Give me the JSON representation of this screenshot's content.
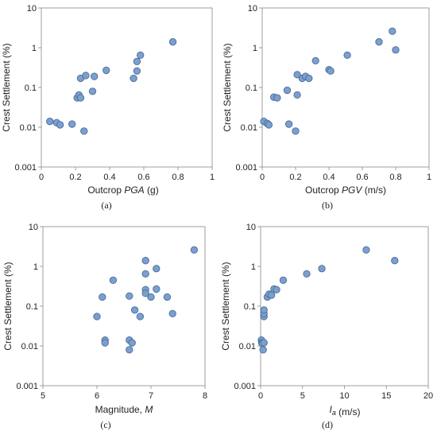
{
  "chart_data": [
    {
      "type": "scatter",
      "panel_label": "(a)",
      "ylabel": "Crest Settlement (%)",
      "xlabel_parts": [
        {
          "t": "Outcrop ",
          "i": false
        },
        {
          "t": "PGA",
          "i": true
        },
        {
          "t": " (g)",
          "i": false
        }
      ],
      "xlim": [
        0,
        1
      ],
      "ylim": [
        0.001,
        10
      ],
      "yscale": "log",
      "x_ticks": [
        "0",
        "0.2",
        "0.4",
        "0.6",
        "0.8",
        "1"
      ],
      "y_ticks": [
        "0.001",
        "0.01",
        "0.1",
        "1",
        "10"
      ],
      "grid": false,
      "marker_color": "#7b9fcf",
      "marker_edge": "#4a6c99",
      "points": [
        {
          "x": 0.05,
          "y": 0.014
        },
        {
          "x": 0.09,
          "y": 0.013
        },
        {
          "x": 0.11,
          "y": 0.0115
        },
        {
          "x": 0.18,
          "y": 0.012
        },
        {
          "x": 0.21,
          "y": 0.055
        },
        {
          "x": 0.22,
          "y": 0.065
        },
        {
          "x": 0.23,
          "y": 0.055
        },
        {
          "x": 0.23,
          "y": 0.17
        },
        {
          "x": 0.25,
          "y": 0.008
        },
        {
          "x": 0.26,
          "y": 0.2
        },
        {
          "x": 0.3,
          "y": 0.08
        },
        {
          "x": 0.31,
          "y": 0.19
        },
        {
          "x": 0.38,
          "y": 0.27
        },
        {
          "x": 0.54,
          "y": 0.17
        },
        {
          "x": 0.56,
          "y": 0.26
        },
        {
          "x": 0.56,
          "y": 0.45
        },
        {
          "x": 0.58,
          "y": 0.65
        },
        {
          "x": 0.77,
          "y": 1.4
        }
      ]
    },
    {
      "type": "scatter",
      "panel_label": "(b)",
      "ylabel": "Crest Settlement (%)",
      "xlabel_parts": [
        {
          "t": "Outcrop ",
          "i": false
        },
        {
          "t": "PGV",
          "i": true
        },
        {
          "t": " (m/s)",
          "i": false
        }
      ],
      "xlim": [
        0,
        1
      ],
      "ylim": [
        0.001,
        10
      ],
      "yscale": "log",
      "x_ticks": [
        "0",
        "0.2",
        "0.4",
        "0.6",
        "0.8",
        "1"
      ],
      "y_ticks": [
        "0.001",
        "0.01",
        "0.1",
        "1",
        "10"
      ],
      "grid": false,
      "marker_color": "#7b9fcf",
      "marker_edge": "#4a6c99",
      "points": [
        {
          "x": 0.01,
          "y": 0.014
        },
        {
          "x": 0.03,
          "y": 0.0125
        },
        {
          "x": 0.04,
          "y": 0.0115
        },
        {
          "x": 0.07,
          "y": 0.057
        },
        {
          "x": 0.09,
          "y": 0.055
        },
        {
          "x": 0.15,
          "y": 0.085
        },
        {
          "x": 0.16,
          "y": 0.012
        },
        {
          "x": 0.2,
          "y": 0.008
        },
        {
          "x": 0.21,
          "y": 0.065
        },
        {
          "x": 0.21,
          "y": 0.21
        },
        {
          "x": 0.24,
          "y": 0.17
        },
        {
          "x": 0.26,
          "y": 0.19
        },
        {
          "x": 0.28,
          "y": 0.17
        },
        {
          "x": 0.32,
          "y": 0.47
        },
        {
          "x": 0.4,
          "y": 0.28
        },
        {
          "x": 0.41,
          "y": 0.26
        },
        {
          "x": 0.51,
          "y": 0.65
        },
        {
          "x": 0.7,
          "y": 1.4
        },
        {
          "x": 0.78,
          "y": 2.6
        },
        {
          "x": 0.8,
          "y": 0.88
        }
      ]
    },
    {
      "type": "scatter",
      "panel_label": "(c)",
      "ylabel": "Crest Settlement (%)",
      "xlabel_parts": [
        {
          "t": "Magnitude, ",
          "i": false
        },
        {
          "t": "M",
          "i": true
        }
      ],
      "xlim": [
        5,
        8
      ],
      "ylim": [
        0.001,
        10
      ],
      "yscale": "log",
      "x_ticks": [
        "5",
        "6",
        "7",
        "8"
      ],
      "y_ticks": [
        "0.001",
        "0.01",
        "0.1",
        "1",
        "10"
      ],
      "grid": false,
      "marker_color": "#7b9fcf",
      "marker_edge": "#4a6c99",
      "points": [
        {
          "x": 6.0,
          "y": 0.055
        },
        {
          "x": 6.1,
          "y": 0.17
        },
        {
          "x": 6.15,
          "y": 0.014
        },
        {
          "x": 6.15,
          "y": 0.012
        },
        {
          "x": 6.3,
          "y": 0.45
        },
        {
          "x": 6.6,
          "y": 0.18
        },
        {
          "x": 6.6,
          "y": 0.014
        },
        {
          "x": 6.6,
          "y": 0.008
        },
        {
          "x": 6.65,
          "y": 0.012
        },
        {
          "x": 6.7,
          "y": 0.08
        },
        {
          "x": 6.8,
          "y": 0.055
        },
        {
          "x": 6.9,
          "y": 1.4
        },
        {
          "x": 6.9,
          "y": 0.65
        },
        {
          "x": 6.9,
          "y": 0.26
        },
        {
          "x": 6.9,
          "y": 0.21
        },
        {
          "x": 7.0,
          "y": 0.17
        },
        {
          "x": 7.1,
          "y": 0.88
        },
        {
          "x": 7.1,
          "y": 0.27
        },
        {
          "x": 7.3,
          "y": 0.17
        },
        {
          "x": 7.4,
          "y": 0.065
        },
        {
          "x": 7.8,
          "y": 2.6
        }
      ]
    },
    {
      "type": "scatter",
      "panel_label": "(d)",
      "ylabel": "Crest Settlement (%)",
      "xlabel_parts": [
        {
          "t": "I",
          "i": true
        },
        {
          "t": "a",
          "i": true,
          "sub": true
        },
        {
          "t": " (m/s)",
          "i": false
        }
      ],
      "xlim": [
        0,
        20
      ],
      "ylim": [
        0.001,
        10
      ],
      "yscale": "log",
      "x_ticks": [
        "0",
        "5",
        "10",
        "15",
        "20"
      ],
      "y_ticks": [
        "0.001",
        "0.01",
        "0.1",
        "1",
        "10"
      ],
      "grid": false,
      "marker_color": "#7b9fcf",
      "marker_edge": "#4a6c99",
      "points": [
        {
          "x": 0.1,
          "y": 0.014
        },
        {
          "x": 0.15,
          "y": 0.012
        },
        {
          "x": 0.2,
          "y": 0.0115
        },
        {
          "x": 0.3,
          "y": 0.008
        },
        {
          "x": 0.4,
          "y": 0.012
        },
        {
          "x": 0.4,
          "y": 0.055
        },
        {
          "x": 0.4,
          "y": 0.065
        },
        {
          "x": 0.4,
          "y": 0.08
        },
        {
          "x": 0.8,
          "y": 0.17
        },
        {
          "x": 1.0,
          "y": 0.2
        },
        {
          "x": 1.3,
          "y": 0.19
        },
        {
          "x": 1.6,
          "y": 0.27
        },
        {
          "x": 1.9,
          "y": 0.26
        },
        {
          "x": 2.7,
          "y": 0.45
        },
        {
          "x": 5.5,
          "y": 0.65
        },
        {
          "x": 7.3,
          "y": 0.88
        },
        {
          "x": 12.6,
          "y": 2.6
        },
        {
          "x": 16.0,
          "y": 1.4
        }
      ]
    }
  ]
}
